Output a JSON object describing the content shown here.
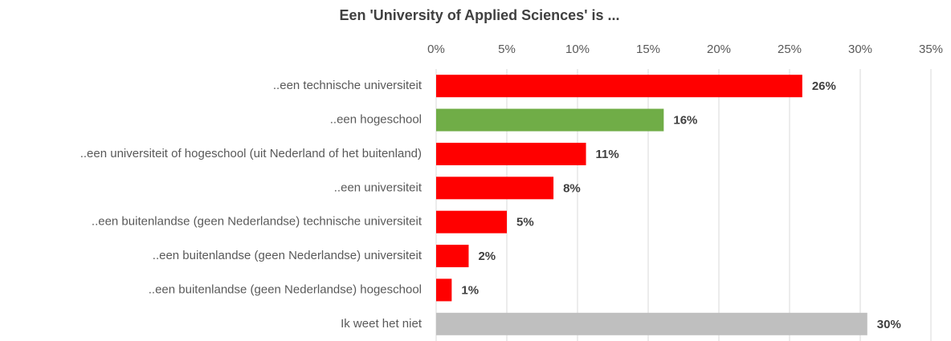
{
  "chart_data": {
    "type": "bar",
    "orientation": "horizontal",
    "title": "Een 'University of Applied Sciences' is ...",
    "categories": [
      "..een technische universiteit",
      "..een hogeschool",
      "..een universiteit of hogeschool (uit Nederland of het buitenland)",
      "..een universiteit",
      "..een buitenlandse (geen Nederlandse) technische universiteit",
      "..een buitenlandse (geen Nederlandse) universiteit",
      "..een buitenlandse (geen Nederlandse) hogeschool",
      "Ik weet het niet"
    ],
    "values": [
      25.9,
      16.1,
      10.6,
      8.3,
      5.0,
      2.3,
      1.1,
      30.5
    ],
    "value_labels": [
      "26%",
      "16%",
      "11%",
      "8%",
      "5%",
      "2%",
      "1%",
      "30%"
    ],
    "colors": [
      "#ff0000",
      "#70ad47",
      "#ff0000",
      "#ff0000",
      "#ff0000",
      "#ff0000",
      "#ff0000",
      "#bfbfbf"
    ],
    "xlim": [
      0,
      35
    ],
    "xticks": [
      {
        "value": 0,
        "label": "0%"
      },
      {
        "value": 5,
        "label": "5%"
      },
      {
        "value": 10,
        "label": "10%"
      },
      {
        "value": 15,
        "label": "15%"
      },
      {
        "value": 20,
        "label": "20%"
      },
      {
        "value": 25,
        "label": "25%"
      },
      {
        "value": 30,
        "label": "30%"
      },
      {
        "value": 35,
        "label": "35%"
      }
    ],
    "grid": true
  }
}
